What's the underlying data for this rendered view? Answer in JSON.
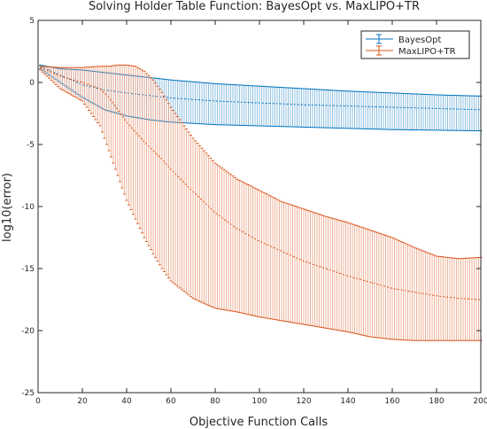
{
  "chart_data": {
    "type": "line",
    "title": "Solving Holder Table Function: BayesOpt vs. MaxLIPO+TR",
    "xlabel": "Objective Function Calls",
    "ylabel": "log10(error)",
    "xlim": [
      0,
      200
    ],
    "ylim": [
      -25,
      5
    ],
    "xticks": [
      0,
      20,
      40,
      60,
      80,
      100,
      120,
      140,
      160,
      180,
      200
    ],
    "yticks": [
      5,
      0,
      -5,
      -10,
      -15,
      -20,
      -25
    ],
    "grid": false,
    "legend_position": "top-right",
    "series": [
      {
        "name": "BayesOpt",
        "color": "#0072bd",
        "x": [
          1,
          10,
          20,
          30,
          40,
          50,
          60,
          80,
          100,
          120,
          140,
          160,
          180,
          200
        ],
        "mean": [
          1.3,
          0.6,
          -0.2,
          -0.6,
          -0.85,
          -1.05,
          -1.25,
          -1.5,
          -1.65,
          -1.8,
          -1.9,
          -2.0,
          -2.1,
          -2.2
        ],
        "upper": [
          1.4,
          1.1,
          1.0,
          0.8,
          0.6,
          0.4,
          0.2,
          -0.1,
          -0.3,
          -0.5,
          -0.7,
          -0.85,
          -1.0,
          -1.1
        ],
        "lower": [
          1.1,
          0.0,
          -1.2,
          -2.2,
          -2.7,
          -3.0,
          -3.2,
          -3.4,
          -3.5,
          -3.6,
          -3.7,
          -3.8,
          -3.85,
          -3.9
        ]
      },
      {
        "name": "MaxLIPO+TR",
        "color": "#d95319",
        "x": [
          1,
          10,
          20,
          28,
          32,
          36,
          40,
          44,
          48,
          52,
          56,
          60,
          70,
          80,
          90,
          100,
          110,
          120,
          130,
          140,
          150,
          160,
          170,
          180,
          190,
          200
        ],
        "mean": [
          1.2,
          0.5,
          0.0,
          -0.5,
          -1.2,
          -2.2,
          -3.2,
          -4.0,
          -4.8,
          -5.5,
          -6.2,
          -7.0,
          -8.8,
          -10.5,
          -11.8,
          -12.8,
          -13.6,
          -14.4,
          -15.0,
          -15.6,
          -16.1,
          -16.6,
          -16.9,
          -17.2,
          -17.4,
          -17.5
        ],
        "upper": [
          1.3,
          1.2,
          1.2,
          1.3,
          1.3,
          1.4,
          1.4,
          1.3,
          0.9,
          0.2,
          -0.8,
          -2.0,
          -4.5,
          -6.5,
          -7.8,
          -8.7,
          -9.6,
          -10.2,
          -10.8,
          -11.3,
          -11.9,
          -12.5,
          -13.3,
          -14.0,
          -14.2,
          -14.1
        ],
        "lower": [
          1.0,
          -0.5,
          -1.5,
          -3.5,
          -5.5,
          -7.5,
          -9.5,
          -11.0,
          -12.5,
          -13.8,
          -15.0,
          -16.0,
          -17.4,
          -18.2,
          -18.5,
          -18.9,
          -19.2,
          -19.5,
          -19.8,
          -20.1,
          -20.5,
          -20.7,
          -20.8,
          -20.8,
          -20.8,
          -20.8
        ]
      }
    ]
  }
}
